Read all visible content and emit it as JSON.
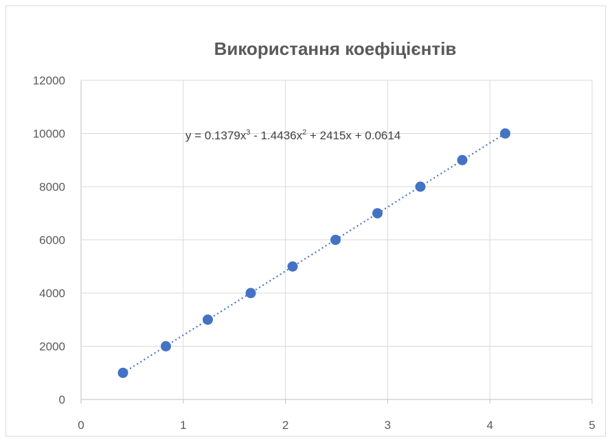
{
  "chart_data": {
    "type": "scatter",
    "title": "Використання коефіцієнтів",
    "xlabel": "",
    "ylabel": "",
    "xlim": [
      0,
      5
    ],
    "ylim": [
      0,
      12000
    ],
    "x_ticks": [
      "0",
      "1",
      "2",
      "3",
      "4",
      "5"
    ],
    "y_ticks": [
      "0",
      "2000",
      "4000",
      "6000",
      "8000",
      "10000",
      "12000"
    ],
    "grid": true,
    "legend": "none",
    "series": [
      {
        "values": [
          {
            "x": 0.41,
            "y": 1000
          },
          {
            "x": 0.83,
            "y": 2000
          },
          {
            "x": 1.24,
            "y": 3000
          },
          {
            "x": 1.66,
            "y": 4000
          },
          {
            "x": 2.07,
            "y": 5000
          },
          {
            "x": 2.49,
            "y": 6000
          },
          {
            "x": 2.9,
            "y": 7000
          },
          {
            "x": 3.32,
            "y": 8000
          },
          {
            "x": 3.73,
            "y": 9000
          },
          {
            "x": 4.15,
            "y": 10000
          }
        ],
        "color": "#4472c4"
      }
    ],
    "trendline": {
      "style": "dotted",
      "color": "#4472c4",
      "equation": {
        "p1": "y = 0.1379x",
        "sup1": "3",
        "p2": " - 1.4436x",
        "sup2": "2",
        "p3": " + 2415x + 0.0614"
      }
    }
  }
}
